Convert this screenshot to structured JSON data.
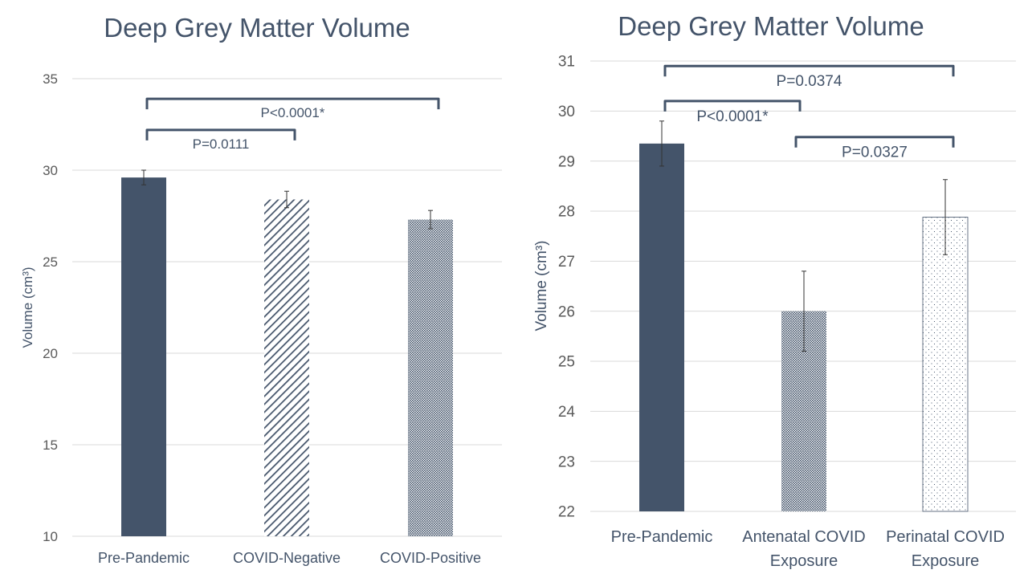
{
  "colors": {
    "text": "#44546A",
    "tick_text": "#595959",
    "grid": "#D9D9D9",
    "bar_fill": "#44546A",
    "bracket": "#44546A"
  },
  "chart_data": [
    {
      "type": "bar",
      "title": "Deep Grey Matter Volume",
      "xlabel": "",
      "ylabel": "Volume (cm³)",
      "ylim": [
        10,
        35
      ],
      "yticks": [
        10,
        15,
        20,
        25,
        30,
        35
      ],
      "grid": true,
      "categories": [
        [
          "Pre-Pandemic"
        ],
        [
          "COVID-Negative"
        ],
        [
          "COVID-Positive"
        ]
      ],
      "values": [
        29.6,
        28.4,
        27.3
      ],
      "errors": [
        0.4,
        0.45,
        0.5
      ],
      "patterns": [
        "solid",
        "diagonal-hatch",
        "dense-dots"
      ],
      "significance": [
        {
          "from": 0,
          "to": 1,
          "label": "P=0.0111",
          "level": 32.2
        },
        {
          "from": 0,
          "to": 2,
          "label": "P<0.0001*",
          "level": 33.9
        }
      ]
    },
    {
      "type": "bar",
      "title": "Deep Grey Matter Volume",
      "xlabel": "",
      "ylabel": "Volume (cm³)",
      "ylim": [
        22,
        31
      ],
      "yticks": [
        22,
        23,
        24,
        25,
        26,
        27,
        28,
        29,
        30,
        31
      ],
      "grid": true,
      "categories": [
        [
          "Pre-Pandemic"
        ],
        [
          "Antenatal COVID",
          "Exposure"
        ],
        [
          "Perinatal COVID",
          "Exposure"
        ]
      ],
      "values": [
        29.35,
        26.0,
        27.88
      ],
      "errors": [
        0.45,
        0.8,
        0.75
      ],
      "patterns": [
        "solid",
        "dense-dots",
        "sparse-dots"
      ],
      "significance": [
        {
          "from": 0,
          "to": 2,
          "label": "P=0.0374",
          "level": 30.9
        },
        {
          "from": 0,
          "to": 1,
          "label": "P<0.0001*",
          "level": 30.2
        },
        {
          "from": 1,
          "to": 2,
          "label": "P=0.0327",
          "level": 29.48
        }
      ]
    }
  ]
}
